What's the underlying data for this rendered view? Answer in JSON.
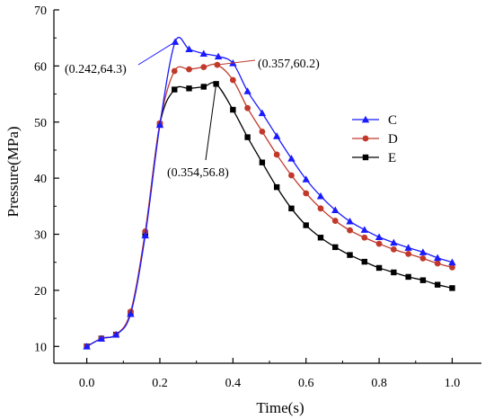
{
  "chart_data": {
    "type": "line",
    "xlabel": "Time(s)",
    "ylabel": "Pressure(MPa)",
    "xlim": [
      -0.09,
      1.08
    ],
    "ylim": [
      7,
      70
    ],
    "x_ticks": [
      0.0,
      0.2,
      0.4,
      0.6,
      0.8,
      1.0
    ],
    "x_tick_labels": [
      "0.0",
      "0.2",
      "0.4",
      "0.6",
      "0.8",
      "1.0"
    ],
    "y_ticks": [
      10,
      20,
      30,
      40,
      50,
      60,
      70
    ],
    "y_tick_labels": [
      "10",
      "20",
      "30",
      "40",
      "50",
      "60",
      "70"
    ],
    "grid": false,
    "legend_position": "right",
    "series": [
      {
        "name": "C",
        "color": "#1a1aff",
        "marker": "triangle",
        "x": [
          0.0,
          0.04,
          0.08,
          0.12,
          0.16,
          0.2,
          0.242,
          0.28,
          0.32,
          0.36,
          0.4,
          0.44,
          0.48,
          0.52,
          0.56,
          0.6,
          0.64,
          0.68,
          0.72,
          0.76,
          0.8,
          0.84,
          0.88,
          0.92,
          0.96,
          1.0
        ],
        "y": [
          10.0,
          11.4,
          12.1,
          15.8,
          29.8,
          49.5,
          64.3,
          63.0,
          62.2,
          61.7,
          60.5,
          55.5,
          51.6,
          47.5,
          43.5,
          39.8,
          36.8,
          34.3,
          32.3,
          30.8,
          29.5,
          28.5,
          27.6,
          26.8,
          25.8,
          25.0
        ]
      },
      {
        "name": "D",
        "color": "#c0392b",
        "marker": "circle",
        "x": [
          0.0,
          0.04,
          0.08,
          0.12,
          0.16,
          0.2,
          0.24,
          0.28,
          0.32,
          0.357,
          0.4,
          0.44,
          0.48,
          0.52,
          0.56,
          0.6,
          0.64,
          0.68,
          0.72,
          0.76,
          0.8,
          0.84,
          0.88,
          0.92,
          0.96,
          1.0
        ],
        "y": [
          10.0,
          11.4,
          12.1,
          16.2,
          30.5,
          49.8,
          59.1,
          59.4,
          59.8,
          60.2,
          57.5,
          52.5,
          48.3,
          44.2,
          40.5,
          37.3,
          34.6,
          32.4,
          30.7,
          29.4,
          28.3,
          27.3,
          26.5,
          25.7,
          24.8,
          24.1
        ]
      },
      {
        "name": "E",
        "color": "#000000",
        "marker": "square",
        "x": [
          0.0,
          0.04,
          0.08,
          0.12,
          0.16,
          0.2,
          0.24,
          0.28,
          0.32,
          0.354,
          0.4,
          0.44,
          0.48,
          0.52,
          0.56,
          0.6,
          0.64,
          0.68,
          0.72,
          0.76,
          0.8,
          0.84,
          0.88,
          0.92,
          0.96,
          1.0
        ],
        "y": [
          10.0,
          11.4,
          12.1,
          16.0,
          30.1,
          49.6,
          55.8,
          56.0,
          56.3,
          56.8,
          52.2,
          47.3,
          42.8,
          38.4,
          34.6,
          31.6,
          29.4,
          27.7,
          26.3,
          25.1,
          24.0,
          23.2,
          22.4,
          21.8,
          21.0,
          20.4
        ]
      }
    ],
    "annotations": [
      {
        "text": "(0.242,64.3)",
        "x": 0.242,
        "y": 64.3,
        "color": "#1a1aff",
        "anchor": "left"
      },
      {
        "text": "(0.357,60.2)",
        "x": 0.357,
        "y": 60.2,
        "color": "#c0392b",
        "anchor": "right"
      },
      {
        "text": "(0.354,56.8)",
        "x": 0.354,
        "y": 56.8,
        "color": "#000000",
        "anchor": "below"
      }
    ]
  }
}
